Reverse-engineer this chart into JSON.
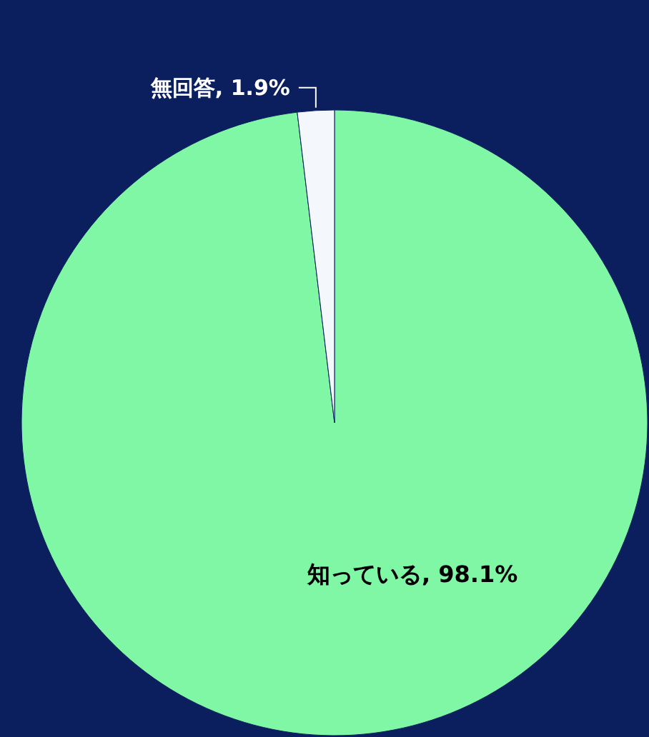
{
  "chart_data": {
    "type": "pie",
    "categories": [
      "知っている",
      "無回答"
    ],
    "values": [
      98.1,
      1.9
    ],
    "colors": [
      "#80f7a4",
      "#f4f7fb"
    ],
    "value_labels": [
      "98.1%",
      "1.9%"
    ]
  }
}
